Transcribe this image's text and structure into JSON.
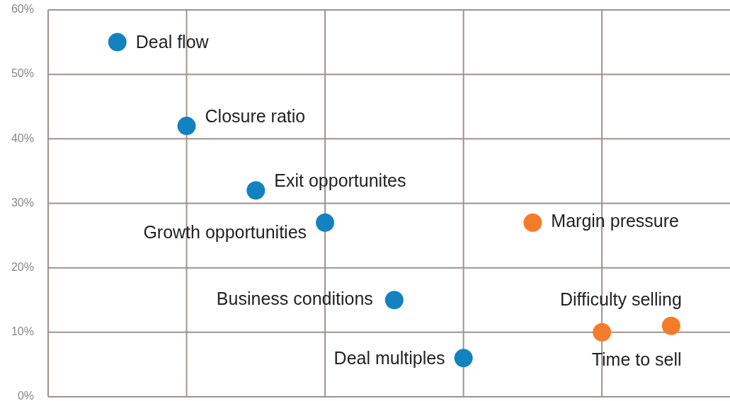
{
  "chart_data": {
    "type": "scatter",
    "categories": [
      null,
      null,
      null,
      null,
      null,
      null,
      null,
      null,
      null
    ],
    "ylim": [
      0,
      60
    ],
    "yticks": [
      {
        "value": 0,
        "label": "0%"
      },
      {
        "value": 10,
        "label": "10%"
      },
      {
        "value": 20,
        "label": "20%"
      },
      {
        "value": 30,
        "label": "30%"
      },
      {
        "value": 40,
        "label": "40%"
      },
      {
        "value": 50,
        "label": "50%"
      },
      {
        "value": 60,
        "label": "60%"
      }
    ],
    "tick_labels": "y",
    "grid": true,
    "marker": "circle",
    "series": [
      {
        "name": "Deal flow",
        "color": "#1282c0",
        "values": [
          55,
          null,
          null,
          null,
          null,
          null,
          null,
          null,
          null
        ]
      },
      {
        "name": "Closure ratio",
        "color": "#1282c0",
        "values": [
          null,
          42,
          null,
          null,
          null,
          null,
          null,
          null,
          null
        ]
      },
      {
        "name": "Exit opportunites",
        "color": "#1282c0",
        "values": [
          null,
          null,
          32,
          null,
          null,
          null,
          null,
          null,
          null
        ]
      },
      {
        "name": "Growth opportunities",
        "color": "#1282c0",
        "values": [
          null,
          null,
          null,
          27,
          null,
          null,
          null,
          null,
          null
        ]
      },
      {
        "name": "Business conditions",
        "color": "#1282c0",
        "values": [
          null,
          null,
          null,
          null,
          15,
          null,
          null,
          null,
          null
        ]
      },
      {
        "name": "Deal multiples",
        "color": "#1282c0",
        "values": [
          null,
          null,
          null,
          null,
          null,
          6,
          null,
          null,
          null
        ]
      },
      {
        "name": "Margin pressure",
        "color": "#f47b2a",
        "values": [
          null,
          null,
          null,
          null,
          null,
          null,
          27,
          null,
          null
        ]
      },
      {
        "name": "Time to sell",
        "color": "#f47b2a",
        "values": [
          null,
          null,
          null,
          null,
          null,
          null,
          null,
          10,
          null
        ]
      },
      {
        "name": "Difficulty selling",
        "color": "#f47b2a",
        "values": [
          null,
          null,
          null,
          null,
          null,
          null,
          null,
          null,
          11
        ]
      }
    ]
  }
}
